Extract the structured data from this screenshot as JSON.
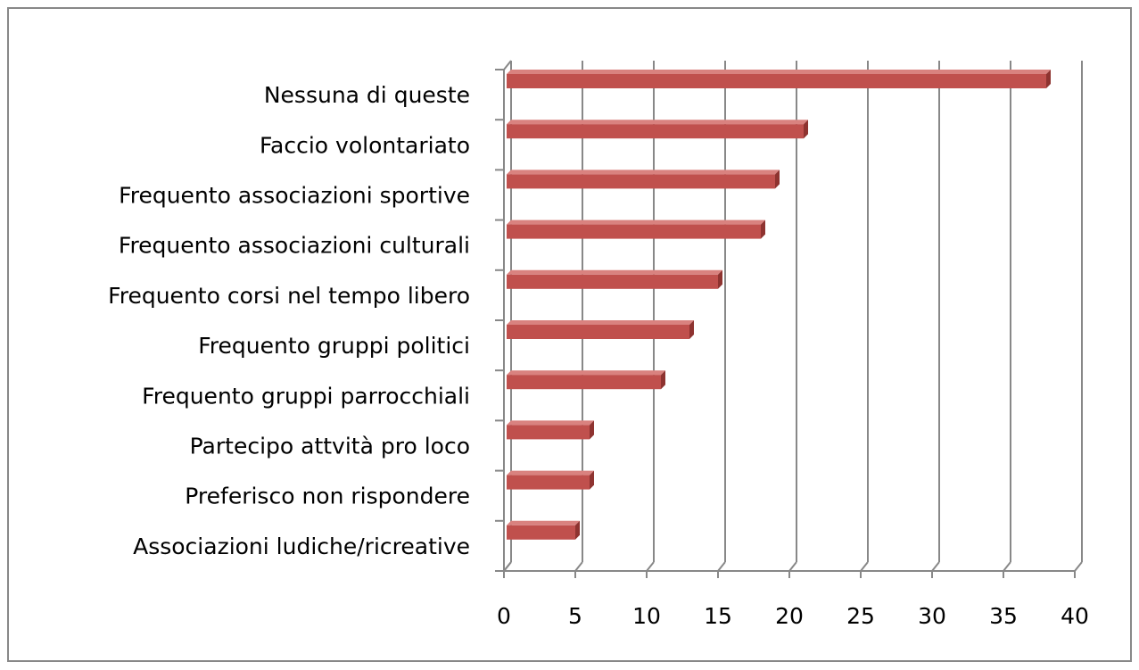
{
  "chart_data": {
    "type": "bar",
    "orientation": "horizontal",
    "categories": [
      "Nessuna di queste",
      "Faccio volontariato",
      "Frequento associazioni sportive",
      "Frequento associazioni culturali",
      "Frequento corsi nel tempo libero",
      "Frequento gruppi politici",
      "Frequento gruppi parrocchiali",
      "Partecipo attvità pro loco",
      "Preferisco non rispondere",
      "Associazioni ludiche/ricreative"
    ],
    "values": [
      38,
      21,
      19,
      18,
      15,
      13,
      11,
      6,
      6,
      5
    ],
    "color": "#c0504d",
    "xlim": [
      0,
      40
    ],
    "xticks": [
      0,
      5,
      10,
      15,
      20,
      25,
      30,
      35,
      40
    ],
    "grid": true
  }
}
